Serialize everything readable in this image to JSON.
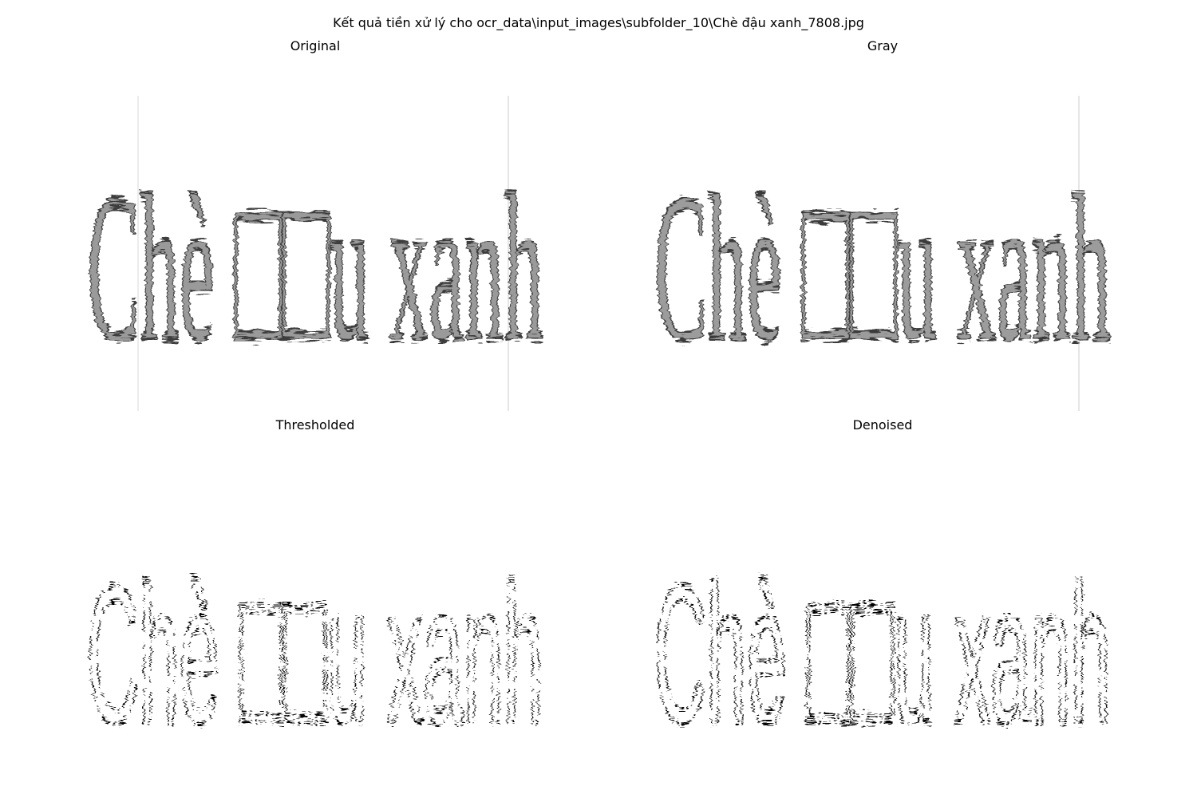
{
  "figure": {
    "suptitle": "Kết quả tiền xử lý cho ocr_data\\input_images\\subfolder_10\\Chè đậu xanh_7808.jpg"
  },
  "panels": [
    {
      "key": "original",
      "title": "Original",
      "image_text": "Chè □□u xanh",
      "style": "gray"
    },
    {
      "key": "gray",
      "title": "Gray",
      "image_text": "Chè □□u xanh",
      "style": "gray"
    },
    {
      "key": "thresholded",
      "title": "Thresholded",
      "image_text": "Chè □□u xanh",
      "style": "binary"
    },
    {
      "key": "denoised",
      "title": "Denoised",
      "image_text": "Chè □□u xanh",
      "style": "binary"
    }
  ]
}
